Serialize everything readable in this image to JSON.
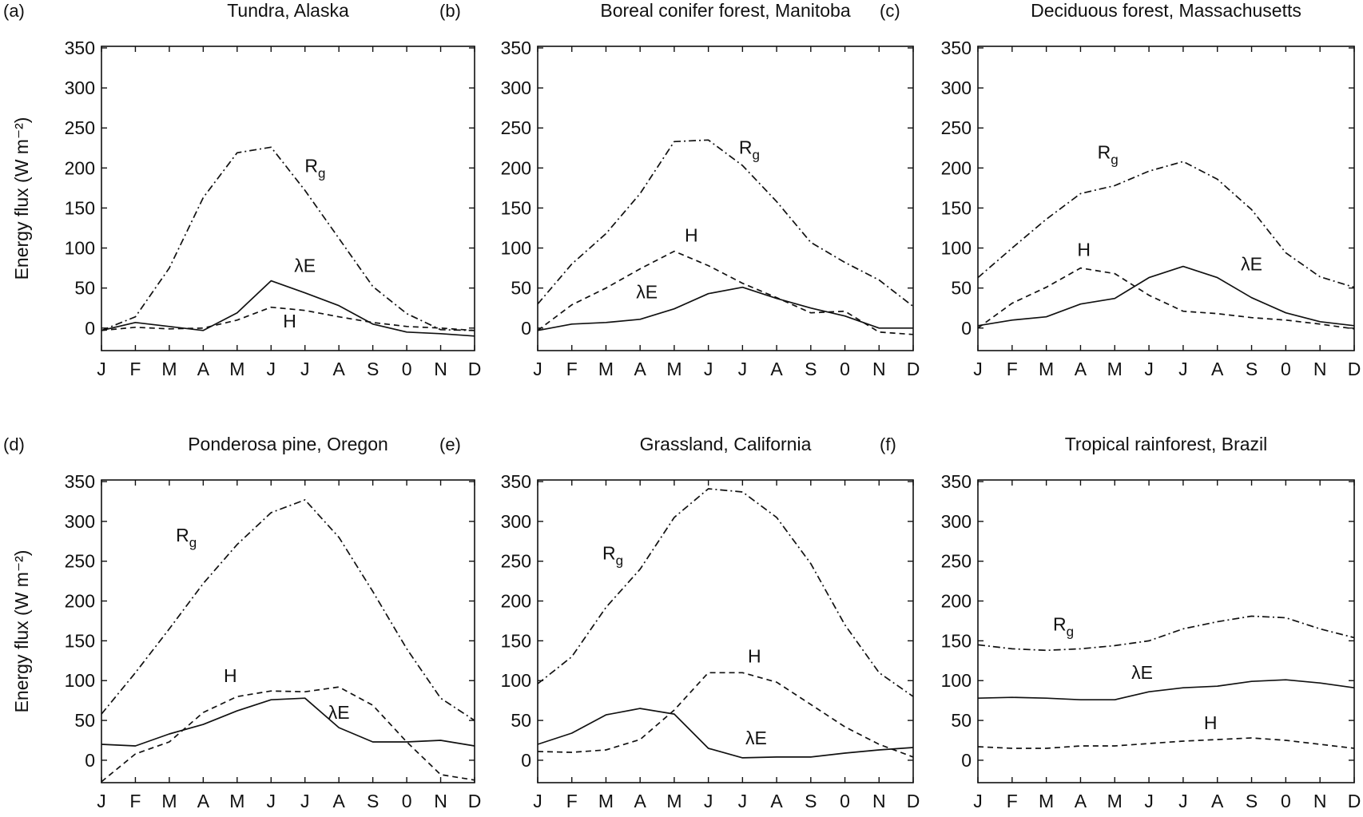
{
  "figure": {
    "ylabel": "Energy flux (W m⁻²)",
    "months": [
      "J",
      "F",
      "M",
      "A",
      "M",
      "J",
      "J",
      "A",
      "S",
      "0",
      "N",
      "D"
    ],
    "yticks": [
      0,
      50,
      100,
      150,
      200,
      250,
      300,
      350
    ],
    "ylim": [
      -28,
      350
    ],
    "line_styles": {
      "Rg": "dash-dot",
      "H": "dashed",
      "lE": "solid"
    }
  },
  "chart_data": [
    {
      "type": "line",
      "panel_label": "(a)",
      "title": "Tundra, Alaska",
      "categories": [
        "J",
        "F",
        "M",
        "A",
        "M",
        "J",
        "J",
        "A",
        "S",
        "0",
        "N",
        "D"
      ],
      "series": [
        {
          "key": "Rg",
          "values": [
            -3,
            14,
            75,
            163,
            219,
            226,
            172,
            112,
            52,
            18,
            -2,
            -3
          ]
        },
        {
          "key": "lE",
          "values": [
            -3,
            7,
            2,
            -3,
            19,
            59,
            44,
            28,
            5,
            -5,
            -7,
            -10
          ]
        },
        {
          "key": "H",
          "values": [
            -3,
            1,
            -1,
            0,
            10,
            26,
            22,
            14,
            7,
            2,
            0,
            -3
          ]
        }
      ],
      "labels": [
        {
          "key": "Rg",
          "text": "R",
          "sub": "g",
          "month": 6.3,
          "value": 195
        },
        {
          "key": "lE",
          "text": "λE",
          "month": 6.0,
          "value": 70
        },
        {
          "key": "H",
          "text": "H",
          "month": 5.55,
          "value": 1
        }
      ]
    },
    {
      "type": "line",
      "panel_label": "(b)",
      "title": "Boreal conifer forest, Manitoba",
      "categories": [
        "J",
        "F",
        "M",
        "A",
        "M",
        "J",
        "J",
        "A",
        "S",
        "0",
        "N",
        "D"
      ],
      "series": [
        {
          "key": "Rg",
          "values": [
            30,
            80,
            118,
            168,
            233,
            235,
            203,
            158,
            107,
            82,
            60,
            27
          ]
        },
        {
          "key": "H",
          "values": [
            -3,
            29,
            50,
            74,
            96,
            78,
            56,
            38,
            19,
            21,
            -5,
            -8
          ]
        },
        {
          "key": "lE",
          "values": [
            -3,
            5,
            7,
            11,
            24,
            43,
            51,
            37,
            25,
            15,
            0,
            0
          ]
        }
      ],
      "labels": [
        {
          "key": "Rg",
          "text": "R",
          "sub": "g",
          "month": 6.2,
          "value": 218
        },
        {
          "key": "H",
          "text": "H",
          "month": 4.5,
          "value": 108
        },
        {
          "key": "lE",
          "text": "λE",
          "month": 3.2,
          "value": 37
        }
      ]
    },
    {
      "type": "line",
      "panel_label": "(c)",
      "title": "Deciduous forest, Massachusetts",
      "categories": [
        "J",
        "F",
        "M",
        "A",
        "M",
        "J",
        "J",
        "A",
        "S",
        "0",
        "N",
        "D"
      ],
      "series": [
        {
          "key": "Rg",
          "values": [
            63,
            100,
            136,
            168,
            178,
            196,
            208,
            186,
            148,
            94,
            64,
            51
          ]
        },
        {
          "key": "H",
          "values": [
            0,
            31,
            51,
            75,
            68,
            41,
            21,
            18,
            13,
            10,
            5,
            -1
          ]
        },
        {
          "key": "lE",
          "values": [
            3,
            10,
            14,
            30,
            37,
            63,
            77,
            63,
            38,
            19,
            8,
            3
          ]
        }
      ],
      "labels": [
        {
          "key": "Rg",
          "text": "R",
          "sub": "g",
          "month": 3.8,
          "value": 212
        },
        {
          "key": "H",
          "text": "H",
          "month": 3.1,
          "value": 90
        },
        {
          "key": "lE",
          "text": "λE",
          "month": 8.0,
          "value": 72
        }
      ]
    },
    {
      "type": "line",
      "panel_label": "(d)",
      "title": "Ponderosa pine, Oregon",
      "categories": [
        "J",
        "F",
        "M",
        "A",
        "M",
        "J",
        "J",
        "A",
        "S",
        "0",
        "N",
        "D"
      ],
      "series": [
        {
          "key": "Rg",
          "values": [
            58,
            110,
            165,
            222,
            271,
            311,
            327,
            280,
            212,
            140,
            78,
            50
          ]
        },
        {
          "key": "H",
          "values": [
            -27,
            8,
            23,
            60,
            80,
            87,
            86,
            92,
            69,
            23,
            -18,
            -25
          ]
        },
        {
          "key": "lE",
          "values": [
            20,
            18,
            33,
            45,
            62,
            76,
            78,
            41,
            23,
            23,
            25,
            18
          ]
        }
      ],
      "labels": [
        {
          "key": "Rg",
          "text": "R",
          "sub": "g",
          "month": 2.5,
          "value": 275
        },
        {
          "key": "H",
          "text": "H",
          "month": 3.8,
          "value": 98
        },
        {
          "key": "lE",
          "text": "λE",
          "month": 7.0,
          "value": 52
        }
      ]
    },
    {
      "type": "line",
      "panel_label": "(e)",
      "title": "Grassland, California",
      "categories": [
        "J",
        "F",
        "M",
        "A",
        "M",
        "J",
        "J",
        "A",
        "S",
        "0",
        "N",
        "D"
      ],
      "series": [
        {
          "key": "Rg",
          "values": [
            96,
            130,
            192,
            240,
            305,
            341,
            337,
            305,
            247,
            170,
            110,
            80
          ]
        },
        {
          "key": "H",
          "values": [
            11,
            10,
            13,
            26,
            63,
            110,
            110,
            98,
            70,
            42,
            20,
            4
          ]
        },
        {
          "key": "lE",
          "values": [
            20,
            34,
            57,
            65,
            58,
            15,
            3,
            4,
            4,
            9,
            13,
            16
          ]
        }
      ],
      "labels": [
        {
          "key": "Rg",
          "text": "R",
          "sub": "g",
          "month": 2.2,
          "value": 252
        },
        {
          "key": "H",
          "text": "H",
          "month": 6.35,
          "value": 123
        },
        {
          "key": "lE",
          "text": "λE",
          "month": 6.4,
          "value": 20
        }
      ]
    },
    {
      "type": "line",
      "panel_label": "(f)",
      "title": "Tropical rainforest, Brazil",
      "categories": [
        "J",
        "F",
        "M",
        "A",
        "M",
        "J",
        "J",
        "A",
        "S",
        "0",
        "N",
        "D"
      ],
      "series": [
        {
          "key": "Rg",
          "values": [
            145,
            140,
            138,
            140,
            144,
            150,
            165,
            174,
            181,
            179,
            165,
            154
          ]
        },
        {
          "key": "lE",
          "values": [
            78,
            79,
            78,
            76,
            76,
            86,
            91,
            93,
            99,
            101,
            97,
            91
          ]
        },
        {
          "key": "H",
          "values": [
            17,
            15,
            15,
            18,
            18,
            21,
            24,
            26,
            28,
            25,
            20,
            15
          ]
        }
      ],
      "labels": [
        {
          "key": "Rg",
          "text": "R",
          "sub": "g",
          "month": 2.5,
          "value": 163
        },
        {
          "key": "lE",
          "text": "λE",
          "month": 4.8,
          "value": 102
        },
        {
          "key": "H",
          "text": "H",
          "month": 6.8,
          "value": 39
        }
      ]
    }
  ]
}
